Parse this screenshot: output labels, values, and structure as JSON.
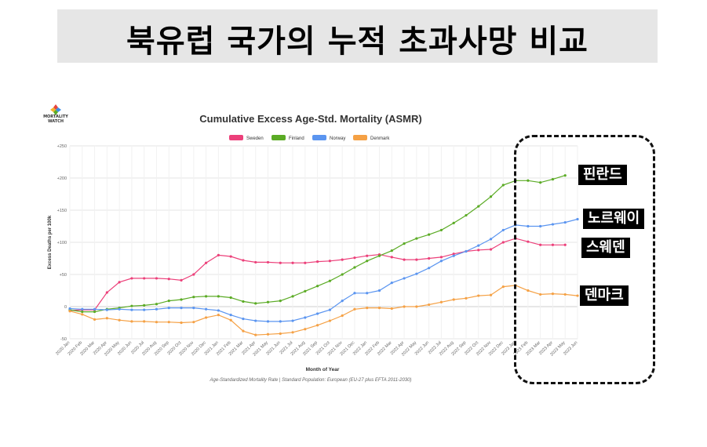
{
  "heading": "북유럽 국가의 누적 초과사망 비교",
  "logo": {
    "text_line1": "MORTALITY",
    "text_line2": "WATCH",
    "icon": "mortality-watch-logo-icon"
  },
  "callouts": {
    "finland": "핀란드",
    "norway": "노르웨이",
    "sweden": "스웨덴",
    "denmark": "덴마크"
  },
  "chart_data": {
    "type": "line",
    "title": "Cumulative Excess Age-Std. Mortality (ASMR)",
    "subtitle": "Age-Standardized Mortality Rate | Standard Population: European (EU-27 plus EFTA 2011-2030)",
    "xlabel": "Month of Year",
    "ylabel": "Excess Deaths per 100k",
    "ylim": [
      -50,
      250
    ],
    "yticks": [
      -50,
      0,
      50,
      100,
      150,
      200,
      250
    ],
    "ytick_labels": [
      "-50",
      "0",
      "+50",
      "+100",
      "+150",
      "+200",
      "+250"
    ],
    "grid": true,
    "legend_position": "top-center",
    "categories": [
      "2020 Jan",
      "2020 Feb",
      "2020 Mar",
      "2020 Apr",
      "2020 May",
      "2020 Jun",
      "2020 Jul",
      "2020 Aug",
      "2020 Sep",
      "2020 Oct",
      "2020 Nov",
      "2020 Dec",
      "2021 Jan",
      "2021 Feb",
      "2021 Mar",
      "2021 Apr",
      "2021 May",
      "2021 Jun",
      "2021 Jul",
      "2021 Aug",
      "2021 Sep",
      "2021 Oct",
      "2021 Nov",
      "2021 Dec",
      "2022 Jan",
      "2022 Feb",
      "2022 Mar",
      "2022 Apr",
      "2022 May",
      "2022 Jun",
      "2022 Jul",
      "2022 Aug",
      "2022 Sep",
      "2022 Oct",
      "2022 Nov",
      "2022 Dec",
      "2023 Jan",
      "2023 Feb",
      "2023 Mar",
      "2023 Apr",
      "2023 May",
      "2023 Jun"
    ],
    "series": [
      {
        "name": "Sweden",
        "color": "#ec407a",
        "values": [
          -6,
          -5,
          -5,
          22,
          38,
          44,
          44,
          44,
          43,
          41,
          50,
          68,
          80,
          78,
          72,
          69,
          69,
          68,
          68,
          68,
          70,
          71,
          73,
          76,
          79,
          81,
          77,
          73,
          73,
          75,
          77,
          82,
          86,
          88,
          89,
          100,
          106,
          101,
          96,
          96,
          96,
          null
        ]
      },
      {
        "name": "Finland",
        "color": "#5bab25",
        "values": [
          -5,
          -8,
          -8,
          -4,
          -2,
          1,
          2,
          4,
          9,
          11,
          15,
          16,
          16,
          14,
          8,
          5,
          7,
          9,
          16,
          24,
          32,
          40,
          50,
          61,
          71,
          79,
          87,
          98,
          106,
          112,
          119,
          130,
          142,
          156,
          171,
          189,
          196,
          196,
          193,
          198,
          204,
          null
        ]
      },
      {
        "name": "Norway",
        "color": "#5b95f0",
        "values": [
          -3,
          -4,
          -4,
          -5,
          -4,
          -5,
          -5,
          -4,
          -2,
          -2,
          -2,
          -4,
          -6,
          -13,
          -19,
          -22,
          -23,
          -23,
          -22,
          -17,
          -11,
          -5,
          9,
          21,
          21,
          25,
          37,
          44,
          51,
          60,
          71,
          79,
          86,
          95,
          105,
          119,
          127,
          125,
          125,
          128,
          131,
          136
        ]
      },
      {
        "name": "Denmark",
        "color": "#f5a145",
        "values": [
          -7,
          -12,
          -20,
          -18,
          -21,
          -23,
          -23,
          -24,
          -24,
          -25,
          -24,
          -17,
          -13,
          -21,
          -38,
          -44,
          -43,
          -42,
          -40,
          -35,
          -29,
          -22,
          -14,
          -4,
          -2,
          -2,
          -3,
          0,
          0,
          3,
          7,
          11,
          13,
          17,
          18,
          31,
          33,
          25,
          19,
          20,
          19,
          17
        ]
      }
    ]
  }
}
